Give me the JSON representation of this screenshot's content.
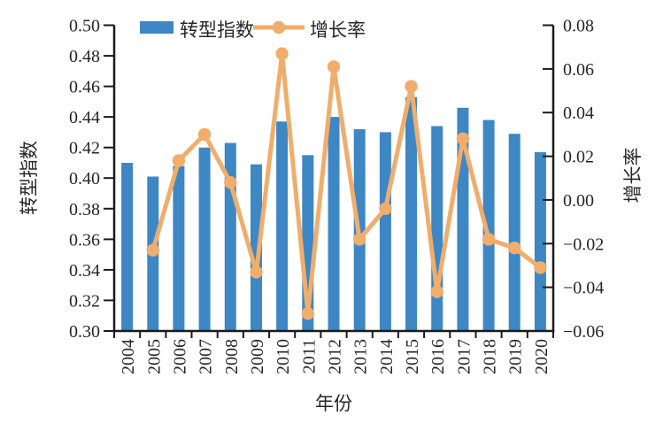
{
  "chart_data": {
    "type": "bar",
    "subtype": "combo-bar-line-dual-axis",
    "title": "",
    "categories": [
      "2004",
      "2005",
      "2006",
      "2007",
      "2008",
      "2009",
      "2010",
      "2011",
      "2012",
      "2013",
      "2014",
      "2015",
      "2016",
      "2017",
      "2018",
      "2019",
      "2020"
    ],
    "series": [
      {
        "name": "转型指数",
        "type": "bar",
        "axis": "left",
        "values": [
          0.41,
          0.401,
          0.408,
          0.42,
          0.423,
          0.409,
          0.437,
          0.415,
          0.44,
          0.432,
          0.43,
          0.453,
          0.434,
          0.446,
          0.438,
          0.429,
          0.417
        ]
      },
      {
        "name": "增长率",
        "type": "line",
        "axis": "right",
        "values": [
          null,
          -0.023,
          0.018,
          0.03,
          0.008,
          -0.033,
          0.067,
          -0.052,
          0.061,
          -0.018,
          -0.004,
          0.052,
          -0.042,
          0.028,
          -0.018,
          -0.022,
          -0.031
        ]
      }
    ],
    "left_axis": {
      "label": "转型指数",
      "min": 0.3,
      "max": 0.5,
      "step": 0.02,
      "ticks": [
        "0.30",
        "0.32",
        "0.34",
        "0.36",
        "0.38",
        "0.40",
        "0.42",
        "0.44",
        "0.46",
        "0.48",
        "0.50"
      ]
    },
    "right_axis": {
      "label": "增长率",
      "min": -0.06,
      "max": 0.08,
      "step": 0.02,
      "ticks": [
        "−0.06",
        "−0.04",
        "−0.02",
        "0.00",
        "0.02",
        "0.04",
        "0.06",
        "0.08"
      ]
    },
    "x_axis": {
      "label": "年份"
    },
    "legend": {
      "position": "top-inside-left"
    },
    "grid": false,
    "colors": {
      "bar": "#3D87C4",
      "line": "#F0AD6C",
      "axis": "#1A1A1A",
      "text": "#262626"
    }
  }
}
